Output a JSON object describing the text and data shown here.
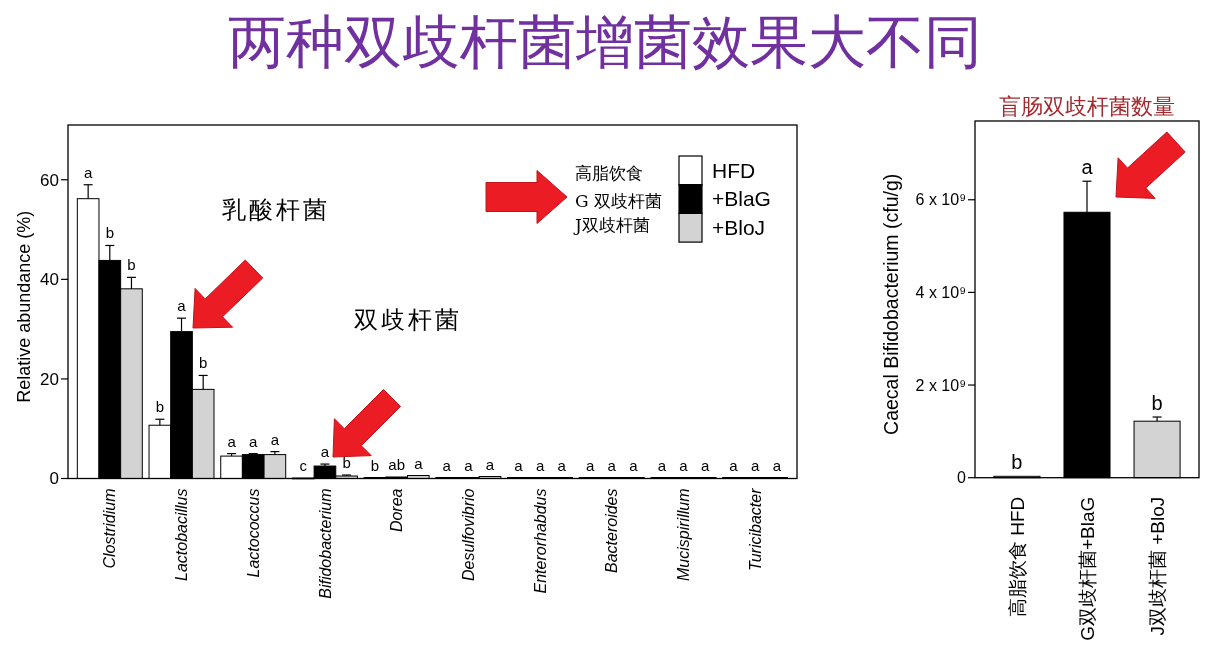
{
  "chart_data": [
    {
      "type": "bar",
      "title": "两种双歧杆菌增菌效果大不同",
      "ylabel": "Relative abundance (%)",
      "categories": [
        "Clostridium",
        "Lactobacillus",
        "Lactococcus",
        "Bifidobacterium",
        "Dorea",
        "Desulfovibrio",
        "Enterorhabdus",
        "Bacteroides",
        "Mucispirillum",
        "Turicibacter"
      ],
      "series": [
        {
          "name": "HFD",
          "color": "#ffffff",
          "values": [
            56.2,
            10.7,
            4.5,
            0.1,
            0.2,
            0.2,
            0.2,
            0.2,
            0.2,
            0.2
          ],
          "errors": [
            [
              56.2,
              59.0
            ],
            [
              10.7,
              11.9
            ],
            [
              4.5,
              5.0
            ],
            null,
            null,
            null,
            null,
            null,
            null,
            null
          ],
          "value_labels": [
            "a",
            "b",
            "a",
            "c",
            "b",
            "a",
            "a",
            "a",
            "a",
            "a"
          ]
        },
        {
          "name": "+BlaG",
          "color": "#000000",
          "values": [
            43.8,
            29.5,
            4.8,
            2.5,
            0.3,
            0.2,
            0.2,
            0.2,
            0.2,
            0.2
          ],
          "errors": [
            [
              43.8,
              46.8
            ],
            [
              29.5,
              32.2
            ],
            [
              4.8,
              5.0
            ],
            [
              2.5,
              2.9
            ],
            null,
            null,
            null,
            null,
            null,
            null
          ],
          "value_labels": [
            "b",
            "a",
            "a",
            "a",
            "ab",
            "a",
            "a",
            "a",
            "a",
            "a"
          ]
        },
        {
          "name": "+BloJ",
          "color": "#d3d3d3",
          "values": [
            38.1,
            17.9,
            4.8,
            0.5,
            0.6,
            0.4,
            0.2,
            0.2,
            0.2,
            0.2
          ],
          "errors": [
            [
              38.1,
              40.4
            ],
            [
              17.9,
              20.7
            ],
            [
              4.8,
              5.4
            ],
            [
              0.5,
              0.7
            ],
            null,
            null,
            null,
            null,
            null,
            null
          ],
          "value_labels": [
            "b",
            "b",
            "a",
            "b",
            "a",
            "a",
            "a",
            "a",
            "a",
            "a"
          ]
        }
      ],
      "ylim": [
        0,
        71
      ],
      "yticks": [
        0,
        20,
        40,
        60
      ],
      "legend": "top right",
      "annotations": [
        "乳酸杆菌",
        "双歧杆菌",
        "高脂饮食",
        "G 双歧杆菌",
        "J双歧杆菌"
      ]
    },
    {
      "type": "bar",
      "title": "盲肠双歧杆菌数量",
      "ylabel": "Caecal Bifidobacterium (cfu/g)",
      "categories": [
        "高脂饮食  HFD",
        "G双歧杆菌+BlaG",
        "J双歧杆菌 +BloJ"
      ],
      "values": [
        30000000,
        5730000000,
        1220000000
      ],
      "colors": [
        "#ffffff",
        "#000000",
        "#d3d3d3"
      ],
      "errors": [
        null,
        [
          5730000000,
          6400000000
        ],
        [
          1220000000,
          1310000000
        ]
      ],
      "value_labels": [
        "b",
        "a",
        "b"
      ],
      "ylim": [
        0,
        7700000000
      ],
      "yticks": [
        0,
        {
          "value": 2000000000,
          "label": "2 x 10⁹"
        },
        {
          "value": 4000000000,
          "label": "4 x 10⁹"
        },
        {
          "value": 6000000000,
          "label": "6 x 10⁹"
        }
      ]
    }
  ]
}
